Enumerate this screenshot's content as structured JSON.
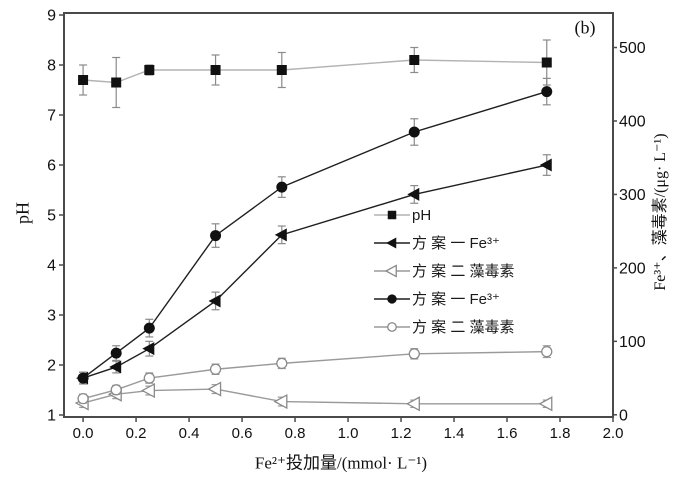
{
  "figure": {
    "panel_label": "(b)",
    "background_color": "#ffffff",
    "frame_color": "#4a4a4a"
  },
  "chart_data": {
    "type": "line",
    "title": "",
    "panel_label": "(b)",
    "x_label": "Fe²⁺投加量/(mmol· L⁻¹)",
    "y_left_label": "pH",
    "y_right_label": "Fe³⁺、藻毒素/(μg· L⁻¹)",
    "grid": false,
    "legend_position": "inside-middle-right",
    "x_range": [
      -0.072,
      2.0
    ],
    "y_left_range": [
      0.96,
      9.04
    ],
    "y_right_range": [
      -3,
      547
    ],
    "x_ticks": [
      0.0,
      0.2,
      0.4,
      0.6,
      0.8,
      1.0,
      1.2,
      1.4,
      1.6,
      1.8,
      2.0
    ],
    "x_tick_labels": [
      "0.0",
      "0.2",
      "0.4",
      "0.6",
      "0.8",
      "1.0",
      "1.2",
      "1.4",
      "1.6",
      "1.8",
      "2.0"
    ],
    "y_left_ticks": [
      1,
      2,
      3,
      4,
      5,
      6,
      7,
      8,
      9
    ],
    "y_left_tick_labels": [
      "1",
      "2",
      "3",
      "4",
      "5",
      "6",
      "7",
      "8",
      "9"
    ],
    "y_right_ticks": [
      0,
      100,
      200,
      300,
      400,
      500
    ],
    "y_right_tick_labels": [
      "0",
      "100",
      "200",
      "300",
      "400",
      "500"
    ],
    "x": [
      0,
      0.125,
      0.25,
      0.5,
      0.75,
      1.25,
      1.75
    ],
    "series": [
      {
        "name": "pH",
        "axis": "left",
        "marker": "square-filled",
        "line_color": "#b3b3b3",
        "marker_color": "#111111",
        "error_color": "#8a8a8a",
        "values": [
          7.7,
          7.65,
          7.9,
          7.9,
          7.9,
          8.1,
          8.05
        ],
        "errors": [
          0.3,
          0.5,
          0.1,
          0.3,
          0.35,
          0.25,
          0.45
        ]
      },
      {
        "name": "方 案 一 Fe³⁺",
        "axis": "right",
        "marker": "triangle-left-filled",
        "line_color": "#1f1f1f",
        "marker_color": "#111111",
        "error_color": "#8a8a8a",
        "values": [
          50,
          65,
          90,
          155,
          245,
          300,
          340
        ],
        "errors": [
          8,
          8,
          10,
          12,
          12,
          12,
          14
        ]
      },
      {
        "name": "方 案 二 藻毒素",
        "axis": "right",
        "marker": "triangle-left-open",
        "line_color": "#9a9a9a",
        "marker_color": "#8a8a8a",
        "error_color": "#9a9a9a",
        "values": [
          16,
          28,
          33,
          35,
          18,
          15,
          15
        ],
        "errors": [
          6,
          6,
          6,
          6,
          6,
          5,
          5
        ]
      },
      {
        "name": "方 案 一 Fe³⁺",
        "axis": "right",
        "marker": "circle-filled",
        "line_color": "#1f1f1f",
        "marker_color": "#111111",
        "error_color": "#8a8a8a",
        "values": [
          50,
          84,
          118,
          244,
          310,
          385,
          440
        ],
        "errors": [
          8,
          10,
          12,
          16,
          14,
          18,
          18
        ]
      },
      {
        "name": "方 案 二 藻毒素",
        "axis": "right",
        "marker": "circle-open",
        "line_color": "#9a9a9a",
        "marker_color": "#8a8a8a",
        "error_color": "#9a9a9a",
        "values": [
          22,
          34,
          50,
          62,
          70,
          83,
          86
        ],
        "errors": [
          6,
          6,
          7,
          7,
          7,
          7,
          8
        ]
      }
    ]
  }
}
